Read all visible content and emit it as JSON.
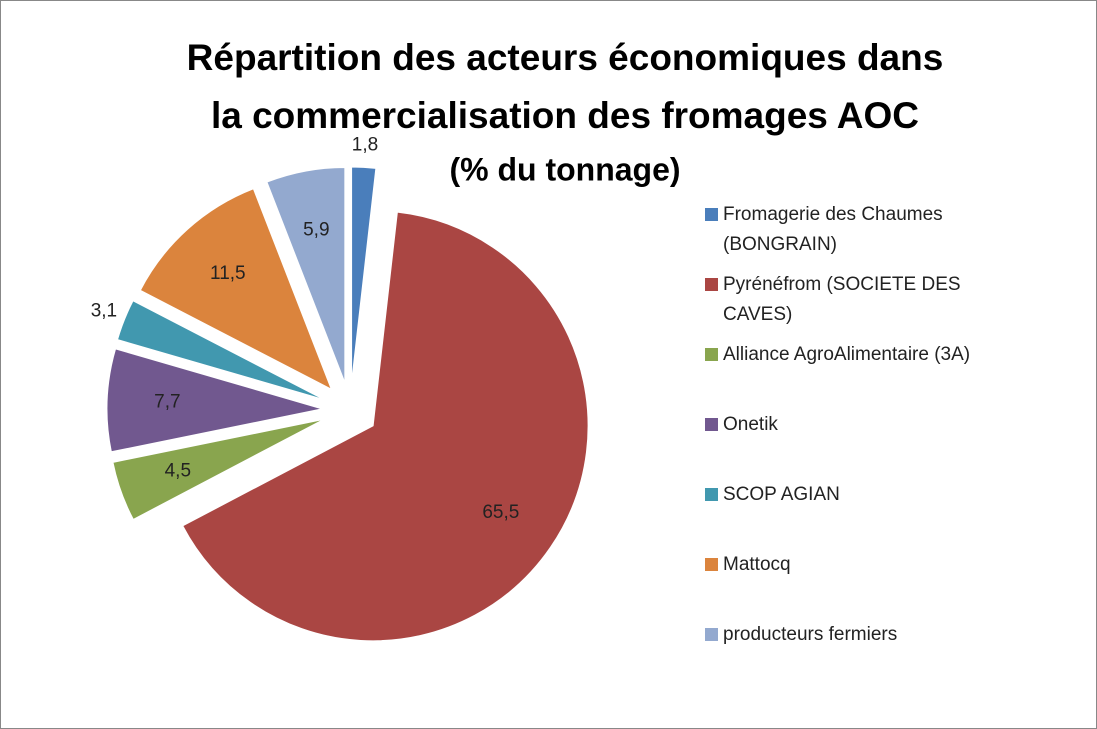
{
  "chart_data": {
    "type": "pie",
    "title": [
      "Répartition des acteurs économiques dans",
      "la commercialisation des fromages AOC"
    ],
    "subtitle": "(% du tonnage)",
    "categories": [
      "Fromagerie des Chaumes (BONGRAIN)",
      "Pyrénéfrom (SOCIETE DES CAVES)",
      "Alliance AgroAlimentaire (3A)",
      "Onetik",
      "SCOP AGIAN",
      "Mattocq",
      "producteurs fermiers"
    ],
    "values": [
      1.8,
      65.5,
      4.5,
      7.7,
      3.1,
      11.5,
      5.9
    ],
    "value_labels": [
      "1,8",
      "65,5",
      "4,5",
      "7,7",
      "3,1",
      "11,5",
      "5,9"
    ],
    "colors": [
      "#4a7ebb",
      "#aa4643",
      "#89a54e",
      "#71588f",
      "#4198af",
      "#db843d",
      "#93a9cf"
    ],
    "legend": "right"
  }
}
